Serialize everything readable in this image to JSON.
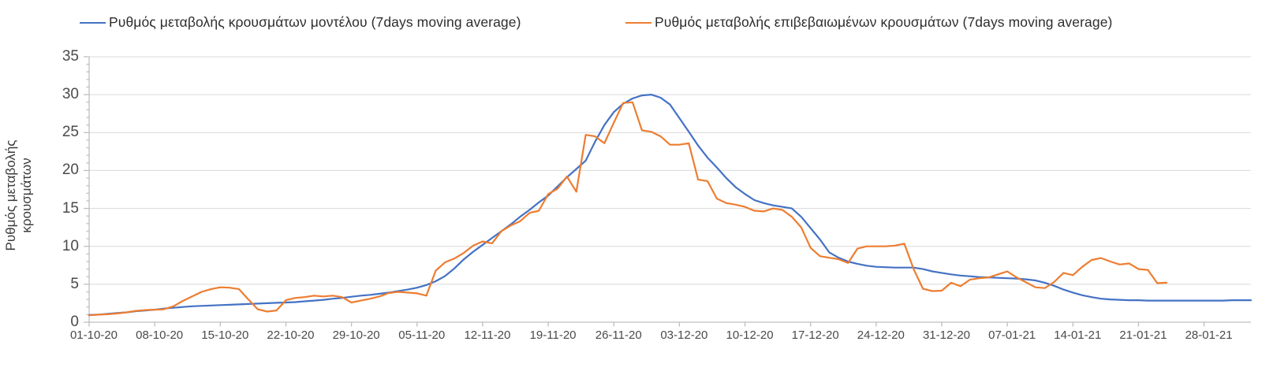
{
  "y_axis_title": "Ρυθμός μεταβολής κρουσμάτων",
  "legend": [
    {
      "label": "Ρυθμός μεταβολής κρουσμάτων μοντέλου (7days moving average)",
      "color": "#4472C4"
    },
    {
      "label": "Ρυθμός μεταβολής επιβεβαιωμένων κρουσμάτων (7days moving average)",
      "color": "#ED7D31"
    }
  ],
  "chart_data": {
    "type": "line",
    "title": "",
    "xlabel": "",
    "ylabel": "Ρυθμός μεταβολής κρουσμάτων",
    "ylim": [
      0,
      35
    ],
    "y_ticks": [
      0,
      5,
      10,
      15,
      20,
      25,
      30,
      35
    ],
    "y_minor_tick_step": 1,
    "grid": "horizontal",
    "legend_position": "top",
    "x_domain_days": 124,
    "x_tick_interval_days": 7,
    "x_tick_labels": [
      "01-10-20",
      "08-10-20",
      "15-10-20",
      "22-10-20",
      "29-10-20",
      "05-11-20",
      "12-11-20",
      "19-11-20",
      "26-11-20",
      "03-12-20",
      "10-12-20",
      "17-12-20",
      "24-12-20",
      "31-12-20",
      "07-01-21",
      "14-01-21",
      "21-01-21",
      "28-01-21"
    ],
    "axis_color": "#BFBFBF",
    "gridline_color": "#D9D9D9",
    "series": [
      {
        "name": "Ρυθμός μεταβολής κρουσμάτων μοντέλου (7days moving average)",
        "color": "#4472C4",
        "start_date": "01-10-20",
        "step_days": 1,
        "values": [
          0.95,
          1.0,
          1.1,
          1.2,
          1.3,
          1.45,
          1.55,
          1.65,
          1.8,
          1.9,
          2.0,
          2.1,
          2.15,
          2.2,
          2.25,
          2.3,
          2.35,
          2.4,
          2.45,
          2.5,
          2.55,
          2.6,
          2.65,
          2.75,
          2.85,
          2.95,
          3.1,
          3.2,
          3.35,
          3.5,
          3.6,
          3.75,
          3.9,
          4.1,
          4.3,
          4.55,
          4.9,
          5.4,
          6.1,
          7.1,
          8.3,
          9.3,
          10.2,
          11.1,
          12.0,
          12.9,
          13.9,
          14.8,
          15.8,
          16.7,
          17.9,
          19.1,
          20.2,
          21.3,
          23.8,
          26.0,
          27.7,
          28.8,
          29.5,
          29.9,
          30.0,
          29.6,
          28.7,
          26.9,
          25.1,
          23.3,
          21.7,
          20.4,
          19.0,
          17.8,
          16.9,
          16.1,
          15.7,
          15.4,
          15.2,
          15.0,
          13.9,
          12.4,
          10.9,
          9.2,
          8.5,
          8.0,
          7.7,
          7.45,
          7.3,
          7.25,
          7.2,
          7.2,
          7.2,
          7.0,
          6.7,
          6.5,
          6.3,
          6.15,
          6.05,
          5.95,
          5.9,
          5.85,
          5.8,
          5.75,
          5.65,
          5.5,
          5.2,
          4.8,
          4.3,
          3.9,
          3.55,
          3.3,
          3.1,
          3.0,
          2.95,
          2.9,
          2.9,
          2.85,
          2.85,
          2.85,
          2.85,
          2.85,
          2.85,
          2.85,
          2.85,
          2.85,
          2.9,
          2.9,
          2.9
        ]
      },
      {
        "name": "Ρυθμός μεταβολής επιβεβαιωμένων κρουσμάτων (7days moving average)",
        "color": "#ED7D31",
        "start_date": "01-10-20",
        "step_days": 1,
        "values": [
          0.9,
          1.0,
          1.05,
          1.15,
          1.3,
          1.5,
          1.6,
          1.65,
          1.7,
          2.1,
          2.8,
          3.4,
          4.0,
          4.35,
          4.6,
          4.55,
          4.35,
          3.0,
          1.7,
          1.4,
          1.55,
          2.9,
          3.2,
          3.3,
          3.5,
          3.4,
          3.5,
          3.3,
          2.6,
          2.85,
          3.1,
          3.4,
          3.85,
          4.0,
          3.9,
          3.8,
          3.5,
          6.8,
          7.9,
          8.4,
          9.15,
          10.1,
          10.65,
          10.4,
          12.0,
          12.75,
          13.3,
          14.4,
          14.7,
          16.9,
          17.6,
          19.2,
          17.2,
          24.7,
          24.5,
          23.6,
          26.3,
          28.9,
          29.0,
          25.3,
          25.1,
          24.5,
          23.4,
          23.4,
          23.6,
          18.8,
          18.6,
          16.3,
          15.7,
          15.5,
          15.2,
          14.7,
          14.6,
          15.0,
          14.8,
          13.9,
          12.5,
          9.8,
          8.7,
          8.5,
          8.3,
          7.8,
          9.7,
          10.0,
          10.0,
          10.0,
          10.1,
          10.35,
          7.0,
          4.4,
          4.1,
          4.15,
          5.2,
          4.75,
          5.6,
          5.8,
          5.9,
          6.3,
          6.7,
          5.9,
          5.25,
          4.6,
          4.5,
          5.3,
          6.5,
          6.2,
          7.3,
          8.2,
          8.45,
          8.0,
          7.6,
          7.75,
          7.0,
          6.9,
          5.15,
          5.2
        ]
      }
    ]
  }
}
